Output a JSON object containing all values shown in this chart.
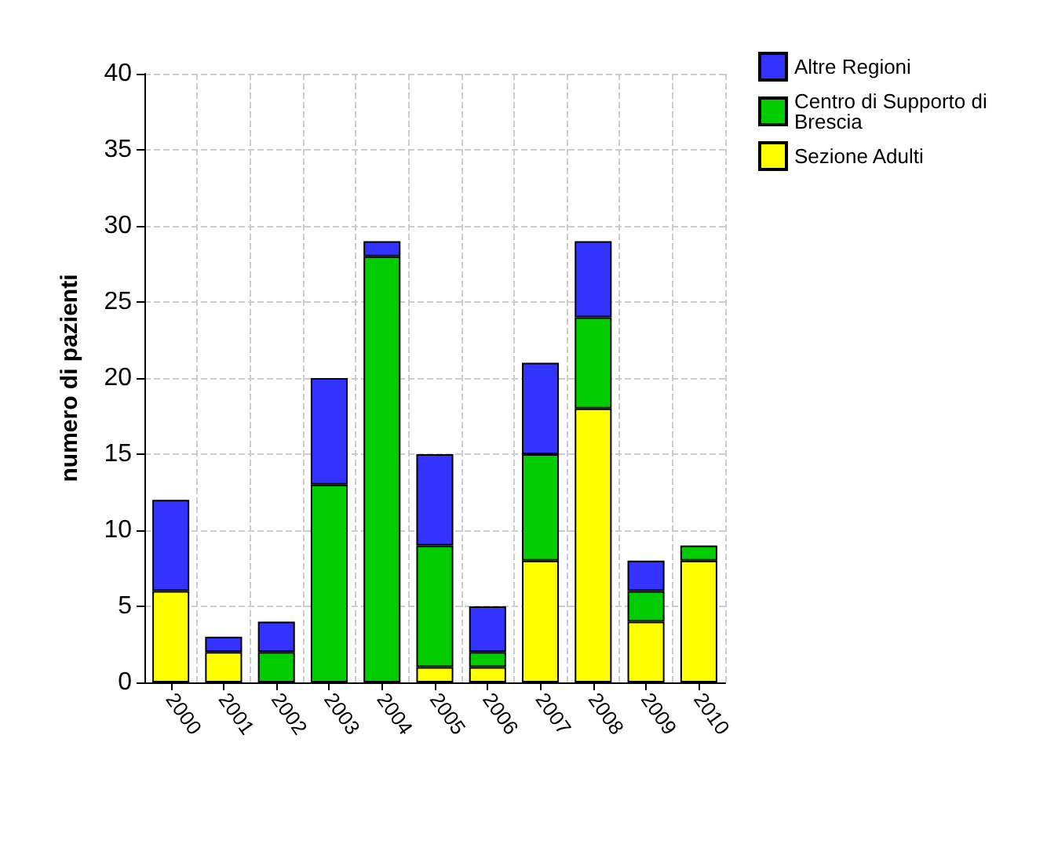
{
  "chart_data": {
    "type": "bar",
    "stacked": true,
    "ylabel": "numero di pazienti",
    "categories": [
      "2000",
      "2001",
      "2002",
      "2003",
      "2004",
      "2005",
      "2006",
      "2007",
      "2008",
      "2009",
      "2010"
    ],
    "series": [
      {
        "name": "Sezione Adulti",
        "color": "#ffff00",
        "values": [
          6,
          2,
          0,
          0,
          0,
          1,
          1,
          8,
          18,
          4,
          8
        ]
      },
      {
        "name": "Centro di Supporto di Brescia",
        "color": "#00cc00",
        "values": [
          0,
          0,
          2,
          13,
          28,
          8,
          1,
          7,
          6,
          2,
          1
        ]
      },
      {
        "name": "Altre Regioni",
        "color": "#3333ff",
        "values": [
          6,
          1,
          2,
          7,
          1,
          6,
          3,
          6,
          5,
          2,
          0
        ]
      }
    ],
    "ylim": [
      0,
      40
    ],
    "yticks": [
      0,
      5,
      10,
      15,
      20,
      25,
      30,
      35,
      40
    ],
    "grid": true,
    "legend": "top right"
  }
}
